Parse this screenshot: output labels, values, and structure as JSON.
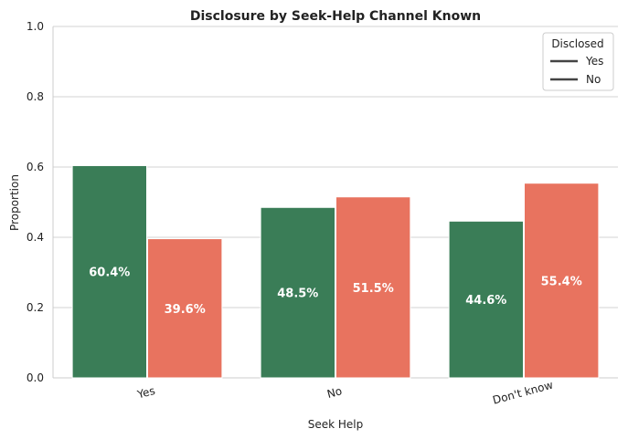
{
  "chart_data": {
    "type": "bar",
    "title": "Disclosure by Seek-Help Channel Known",
    "xlabel": "Seek Help",
    "ylabel": "Proportion",
    "ylim": [
      0,
      1.0
    ],
    "yticks": [
      "0.0",
      "0.2",
      "0.4",
      "0.6",
      "0.8",
      "1.0"
    ],
    "categories": [
      "Yes",
      "No",
      "Don't know"
    ],
    "grid": true,
    "legend": {
      "title": "Disclosed",
      "placement": "top-right",
      "entries": [
        "Yes",
        "No"
      ]
    },
    "series": [
      {
        "name": "Yes",
        "color": "#3a7d57",
        "values": [
          0.604,
          0.485,
          0.446
        ],
        "labels": [
          "60.4%",
          "48.5%",
          "44.6%"
        ]
      },
      {
        "name": "No",
        "color": "#e8735f",
        "values": [
          0.396,
          0.515,
          0.554
        ],
        "labels": [
          "39.6%",
          "51.5%",
          "55.4%"
        ]
      }
    ]
  }
}
